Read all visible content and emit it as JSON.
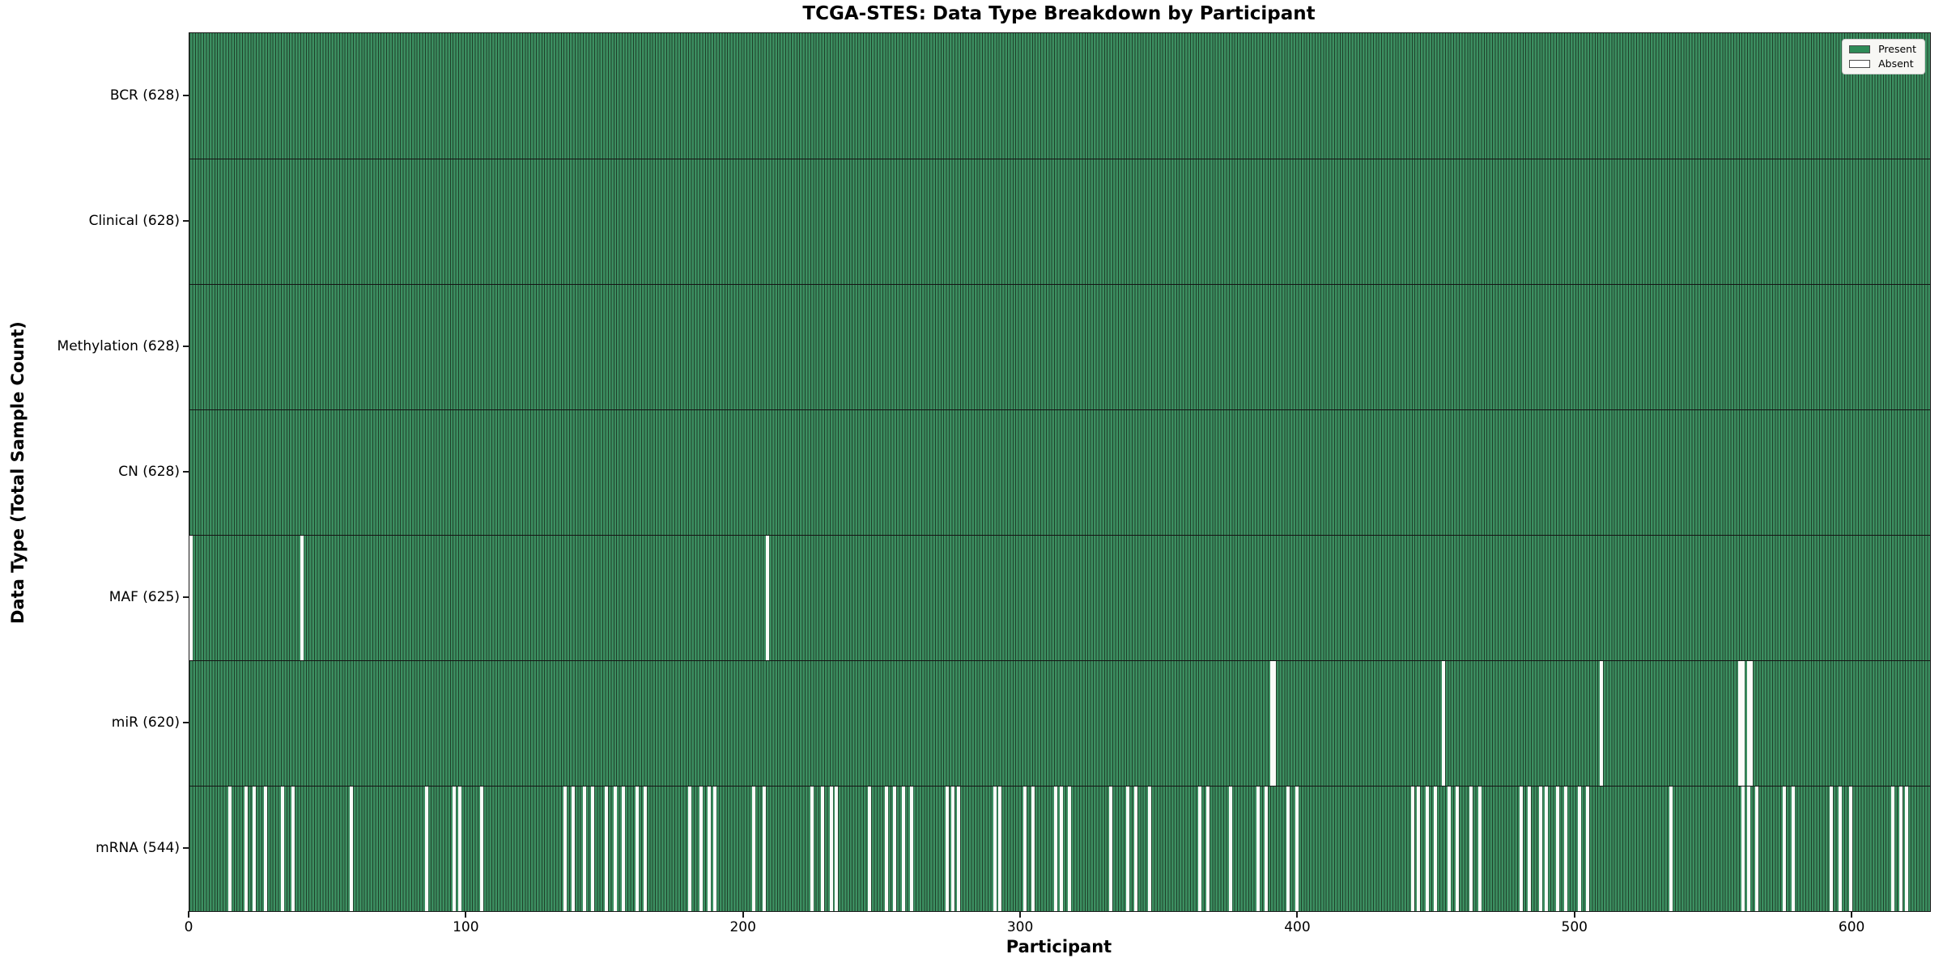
{
  "chart_data": {
    "type": "heatmap",
    "title": "TCGA-STES: Data Type Breakdown by Participant",
    "xlabel": "Participant",
    "ylabel": "Data Type (Total Sample Count)",
    "x_axis": {
      "min": 0,
      "max": 628,
      "ticks": [
        0,
        100,
        200,
        300,
        400,
        500,
        600
      ]
    },
    "n_participants": 628,
    "legend_position": "upper right",
    "grid": false,
    "colors": {
      "present": "#2E8B57",
      "present_stripe_light": "#3c8f61",
      "present_stripe_dark": "#1f402a",
      "absent": "#fbfbf9",
      "spine": "#1a1a1a",
      "legend_bg": "#f7f7f4"
    },
    "legend": [
      {
        "label": "Present",
        "color": "#2E8B57"
      },
      {
        "label": "Absent",
        "color": "#ffffff"
      }
    ],
    "rows": [
      {
        "name": "BCR",
        "label": "BCR (628)",
        "present_count": 628,
        "absent_participants": []
      },
      {
        "name": "Clinical",
        "label": "Clinical (628)",
        "present_count": 628,
        "absent_participants": []
      },
      {
        "name": "Methylation",
        "label": "Methylation (628)",
        "present_count": 628,
        "absent_participants": []
      },
      {
        "name": "CN",
        "label": "CN (628)",
        "present_count": 628,
        "absent_participants": []
      },
      {
        "name": "MAF",
        "label": "MAF (625)",
        "present_count": 625,
        "absent_participants": [
          0,
          40,
          208
        ]
      },
      {
        "name": "miR",
        "label": "miR (620)",
        "present_count": 620,
        "absent_participants": [
          390,
          391,
          452,
          509,
          559,
          560,
          562,
          563
        ]
      },
      {
        "name": "mRNA",
        "label": "mRNA (544)",
        "present_count": 544,
        "absent_participants": [
          14,
          20,
          23,
          27,
          33,
          37,
          58,
          85,
          95,
          97,
          105,
          135,
          138,
          142,
          145,
          150,
          153,
          156,
          161,
          164,
          180,
          184,
          187,
          189,
          203,
          207,
          224,
          228,
          231,
          233,
          245,
          251,
          254,
          257,
          260,
          273,
          275,
          277,
          290,
          292,
          301,
          304,
          312,
          314,
          317,
          332,
          338,
          341,
          346,
          364,
          367,
          375,
          385,
          388,
          396,
          399,
          441,
          443,
          446,
          449,
          454,
          457,
          462,
          465,
          480,
          483,
          487,
          489,
          493,
          496,
          501,
          504,
          534,
          560,
          562,
          565,
          575,
          578,
          592,
          595,
          599,
          614,
          617,
          619
        ]
      }
    ]
  }
}
